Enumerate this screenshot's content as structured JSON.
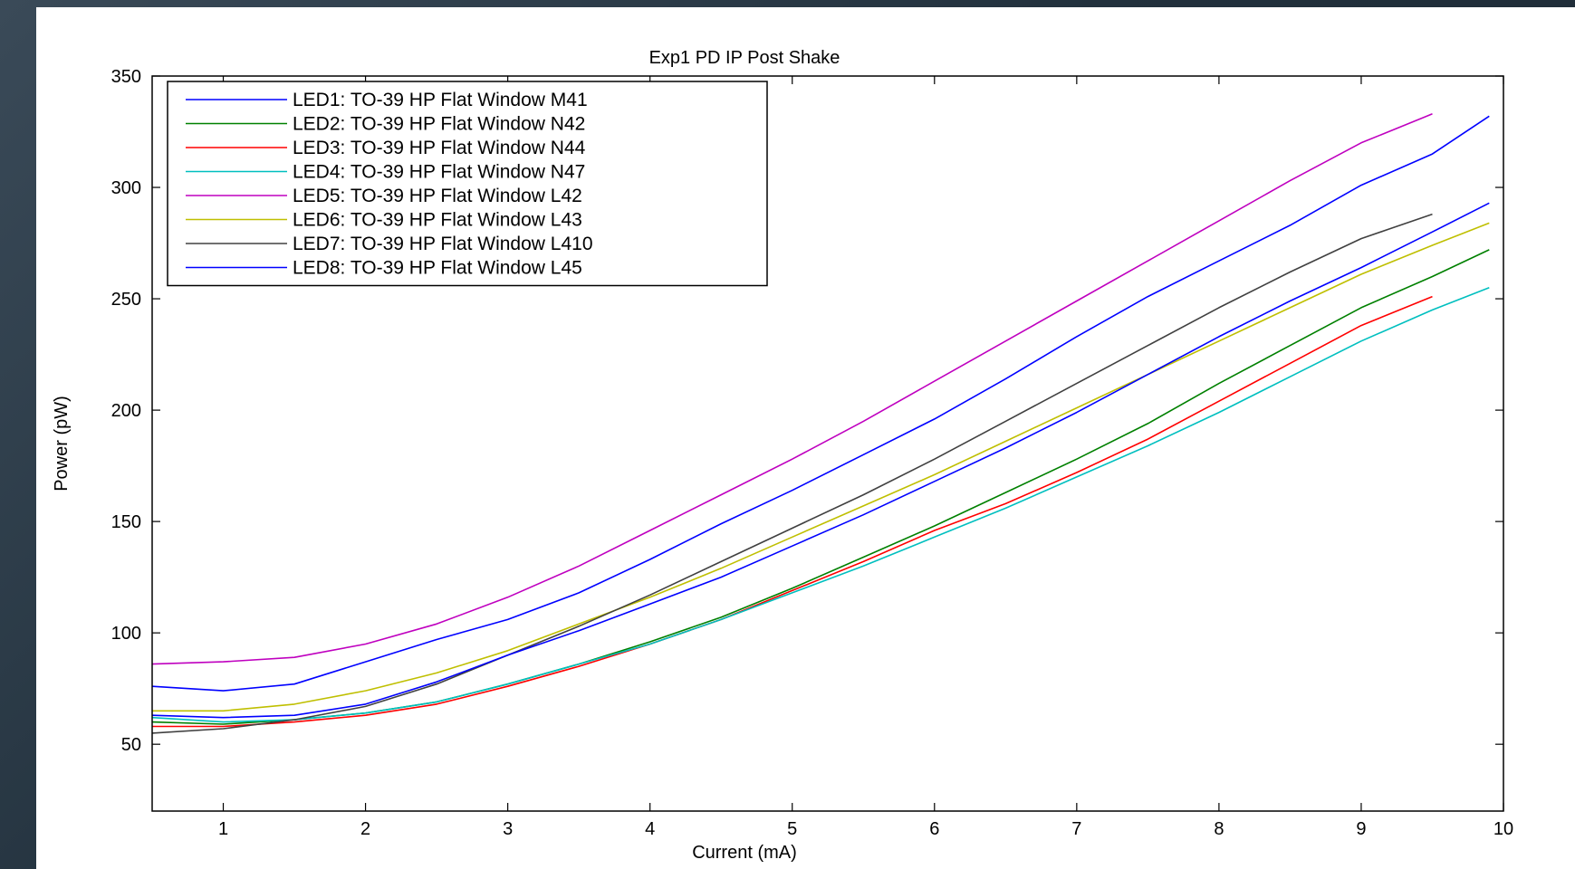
{
  "chart_data": {
    "type": "line",
    "title": "Exp1 PD IP Post Shake",
    "xlabel": "Current (mA)",
    "ylabel": "Power (pW)",
    "xlim": [
      0.5,
      10
    ],
    "ylim": [
      20,
      350
    ],
    "xticks": [
      1,
      2,
      3,
      4,
      5,
      6,
      7,
      8,
      9,
      10
    ],
    "yticks": [
      50,
      100,
      150,
      200,
      250,
      300,
      350
    ],
    "grid": false,
    "legend_position": "top-left",
    "x": [
      0.5,
      1,
      1.5,
      2,
      2.5,
      3,
      3.5,
      4,
      4.5,
      5,
      5.5,
      6,
      6.5,
      7,
      7.5,
      8,
      8.5,
      9,
      9.5,
      9.9
    ],
    "series": [
      {
        "name": "LED1: TO-39 HP Flat Window M41",
        "color": "#0000ff",
        "values": [
          76,
          74,
          77,
          87,
          97,
          106,
          118,
          133,
          149,
          164,
          180,
          196,
          214,
          233,
          251,
          267,
          283,
          301,
          315,
          332
        ]
      },
      {
        "name": "LED2: TO-39 HP Flat Window N42",
        "color": "#008000",
        "values": [
          60,
          59,
          61,
          64,
          69,
          77,
          86,
          96,
          107,
          120,
          134,
          148,
          163,
          178,
          194,
          212,
          229,
          246,
          260,
          272
        ]
      },
      {
        "name": "LED3: TO-39 HP Flat Window N44",
        "color": "#ff0000",
        "values": [
          58,
          58,
          60,
          63,
          68,
          76,
          85,
          95,
          106,
          119,
          132,
          146,
          158,
          172,
          187,
          204,
          221,
          238,
          251,
          null
        ]
      },
      {
        "name": "LED4: TO-39 HP Flat Window N47",
        "color": "#00bfbf",
        "values": [
          62,
          60,
          61,
          64,
          69,
          77,
          86,
          95,
          106,
          118,
          130,
          143,
          156,
          170,
          184,
          199,
          215,
          231,
          245,
          255
        ]
      },
      {
        "name": "LED5: TO-39 HP Flat Window L42",
        "color": "#bf00bf",
        "values": [
          86,
          87,
          89,
          95,
          104,
          116,
          130,
          146,
          162,
          178,
          195,
          213,
          231,
          249,
          267,
          285,
          303,
          320,
          333,
          null
        ]
      },
      {
        "name": "LED6: TO-39 HP Flat Window L43",
        "color": "#bfbf00",
        "values": [
          65,
          65,
          68,
          74,
          82,
          92,
          104,
          116,
          129,
          143,
          157,
          171,
          186,
          201,
          216,
          231,
          246,
          261,
          274,
          284
        ]
      },
      {
        "name": "LED7: TO-39 HP Flat Window L410",
        "color": "#404040",
        "values": [
          55,
          57,
          61,
          67,
          77,
          90,
          103,
          117,
          132,
          147,
          162,
          178,
          195,
          212,
          229,
          246,
          262,
          277,
          288,
          null
        ]
      },
      {
        "name": "LED8: TO-39 HP Flat Window L45",
        "color": "#0000ff",
        "values": [
          63,
          62,
          63,
          68,
          78,
          90,
          101,
          113,
          125,
          139,
          153,
          168,
          183,
          199,
          216,
          233,
          249,
          264,
          280,
          293
        ]
      }
    ]
  }
}
